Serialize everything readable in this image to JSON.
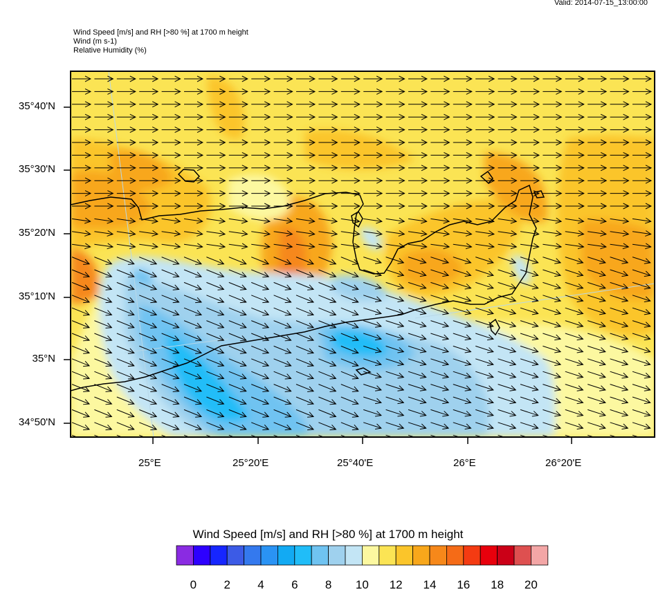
{
  "valid_time": "Valid: 2014-07-15_13:00:00",
  "titles": {
    "line1": "Wind Speed [m/s] and RH [>80 %] at 1700 m height",
    "line2": "Wind   (m s-1)",
    "line3": "Relative Humidity   (%)"
  },
  "lat_labels": [
    "35°40'N",
    "35°30'N",
    "35°20'N",
    "35°10'N",
    "35°N",
    "34°50'N"
  ],
  "lon_labels": [
    "25°E",
    "25°20'E",
    "25°40'E",
    "26°E",
    "26°20'E"
  ],
  "legend": {
    "title": "Wind Speed [m/s] and RH [>80 %] at 1700 m height",
    "tick_labels": [
      "0",
      "2",
      "4",
      "6",
      "8",
      "10",
      "12",
      "14",
      "16",
      "18",
      "20"
    ],
    "colors": [
      "#8a2be2",
      "#2d00ff",
      "#1626ff",
      "#3c5be6",
      "#3479ee",
      "#2a93f4",
      "#12aaf3",
      "#20bdf8",
      "#6fc3f1",
      "#9fd1ee",
      "#c3e5f5",
      "#fcf8a0",
      "#fbe454",
      "#fbc52a",
      "#f8a71b",
      "#f6881a",
      "#f56b17",
      "#f43b12",
      "#e8000c",
      "#cb0017",
      "#de5050",
      "#f3a6a6"
    ]
  },
  "arrow_icon": "wind-vector-arrow",
  "wind_direction": "east-southeast"
}
